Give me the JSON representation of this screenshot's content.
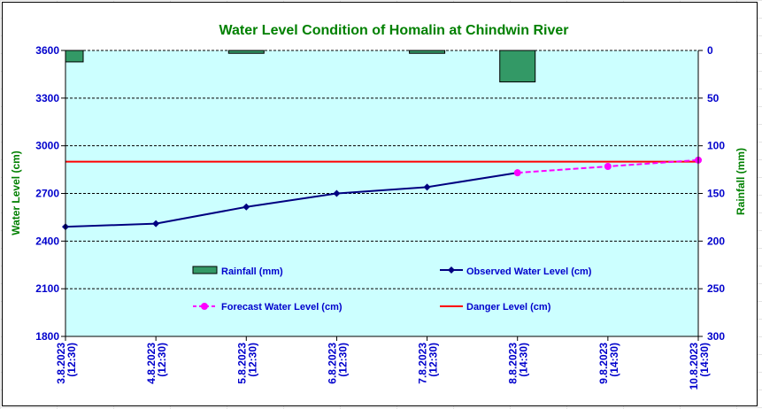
{
  "chart_data": {
    "type": "bar+line",
    "title": "Water Level Condition of Homalin at Chindwin River",
    "ylabel_left": "Water Level (cm)",
    "ylabel_right": "Rainfall (mm)",
    "categories": [
      "3.8.2023|(12:30)",
      "4.8.2023|(12:30)",
      "5.8.2023|(12:30)",
      "6.8.2023|(12:30)",
      "7.8.2023|(12:30)",
      "8.8.2023|(14:30)",
      "9.8.2023|(14:30)",
      "10.8.2023|(14:30)"
    ],
    "ylim_left": [
      1800,
      3600
    ],
    "yticks_left": [
      1800,
      2100,
      2400,
      2700,
      3000,
      3300,
      3600
    ],
    "ylim_right_inverted": [
      0,
      300
    ],
    "yticks_right": [
      0,
      50,
      100,
      150,
      200,
      250,
      300
    ],
    "grid": true,
    "legend_placement": "inside-bottom",
    "series": [
      {
        "name": "Rainfall (mm)",
        "kind": "bar",
        "axis": "right",
        "color": "#339966",
        "values": [
          12,
          0,
          3,
          0,
          3,
          33,
          null,
          null
        ]
      },
      {
        "name": "Observed Water Level (cm)",
        "kind": "line",
        "axis": "left",
        "color": "#000080",
        "values": [
          2490,
          2510,
          2615,
          2700,
          2740,
          2830,
          null,
          null
        ]
      },
      {
        "name": "Forecast Water Level (cm)",
        "kind": "dashed-line",
        "axis": "left",
        "color": "#ff00ff",
        "values": [
          null,
          null,
          null,
          null,
          null,
          2830,
          2870,
          2910
        ]
      },
      {
        "name": "Danger Level (cm)",
        "kind": "hline",
        "axis": "left",
        "color": "#ff0000",
        "value": 2900
      }
    ],
    "colors": {
      "plot_bg": "#ccffff",
      "title": "#008000",
      "ticks": "#0000cc",
      "axis_title": "#008000"
    }
  }
}
